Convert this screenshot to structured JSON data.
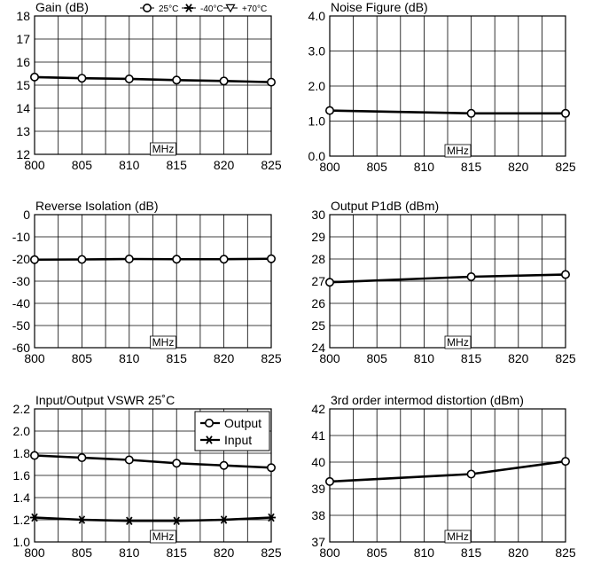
{
  "chart_data": [
    {
      "type": "line",
      "title": "Gain (dB)",
      "unit_label": "MHz",
      "x_ticks": [
        "800",
        "805",
        "810",
        "815",
        "820",
        "825"
      ],
      "y_ticks": [
        "12",
        "13",
        "14",
        "15",
        "16",
        "17",
        "18"
      ],
      "ylim": [
        12,
        18
      ],
      "xlim": [
        800,
        825
      ],
      "legend": {
        "style": "inline-top",
        "entries": [
          {
            "label": "25°C",
            "marker": "circle"
          },
          {
            "label": "-40°C",
            "marker": "asterisk"
          },
          {
            "label": "+70°C",
            "marker": "triangle-down"
          }
        ]
      },
      "series": [
        {
          "marker": "circle",
          "x": [
            800,
            805,
            810,
            815,
            820,
            825
          ],
          "values": [
            15.35,
            15.3,
            15.27,
            15.22,
            15.18,
            15.13
          ]
        }
      ]
    },
    {
      "type": "line",
      "title": "Noise Figure (dB)",
      "unit_label": "MHz",
      "x_ticks": [
        "800",
        "805",
        "810",
        "815",
        "820",
        "825"
      ],
      "y_ticks": [
        "0.0",
        "1.0",
        "2.0",
        "3.0",
        "4.0"
      ],
      "ylim": [
        0,
        4
      ],
      "xlim": [
        800,
        825
      ],
      "series": [
        {
          "marker": "circle",
          "x": [
            800,
            815,
            825
          ],
          "values": [
            1.3,
            1.22,
            1.22
          ]
        }
      ]
    },
    {
      "type": "line",
      "title": "Reverse Isolation (dB)",
      "unit_label": "MHz",
      "x_ticks": [
        "800",
        "805",
        "810",
        "815",
        "820",
        "825"
      ],
      "y_ticks": [
        "-60",
        "-50",
        "-40",
        "-30",
        "-20",
        "-10",
        "0"
      ],
      "ylim": [
        -60,
        0
      ],
      "xlim": [
        800,
        825
      ],
      "series": [
        {
          "marker": "circle",
          "x": [
            800,
            805,
            810,
            815,
            820,
            825
          ],
          "values": [
            -20.3,
            -20.2,
            -20.0,
            -20.1,
            -20.1,
            -19.9
          ]
        }
      ]
    },
    {
      "type": "line",
      "title": "Output P1dB (dBm)",
      "unit_label": "MHz",
      "x_ticks": [
        "800",
        "805",
        "810",
        "815",
        "820",
        "825"
      ],
      "y_ticks": [
        "24",
        "25",
        "26",
        "27",
        "28",
        "29",
        "30"
      ],
      "ylim": [
        24,
        30
      ],
      "xlim": [
        800,
        825
      ],
      "series": [
        {
          "marker": "circle",
          "x": [
            800,
            815,
            825
          ],
          "values": [
            26.95,
            27.2,
            27.3
          ]
        }
      ]
    },
    {
      "type": "line",
      "title": "Input/Output VSWR 25˚C",
      "unit_label": "MHz",
      "x_ticks": [
        "800",
        "805",
        "810",
        "815",
        "820",
        "825"
      ],
      "y_ticks": [
        "1.0",
        "1.2",
        "1.4",
        "1.6",
        "1.8",
        "2.0",
        "2.2"
      ],
      "ylim": [
        1.0,
        2.2
      ],
      "xlim": [
        800,
        825
      ],
      "legend": {
        "style": "box-top-right",
        "entries": [
          {
            "label": "Output",
            "marker": "circle"
          },
          {
            "label": "Input",
            "marker": "asterisk"
          }
        ]
      },
      "series": [
        {
          "name": "Output",
          "marker": "circle",
          "x": [
            800,
            805,
            810,
            815,
            820,
            825
          ],
          "values": [
            1.78,
            1.76,
            1.74,
            1.71,
            1.69,
            1.67
          ]
        },
        {
          "name": "Input",
          "marker": "asterisk",
          "x": [
            800,
            805,
            810,
            815,
            820,
            825
          ],
          "values": [
            1.22,
            1.2,
            1.19,
            1.19,
            1.2,
            1.22
          ]
        }
      ]
    },
    {
      "type": "line",
      "title": "3rd order intermod distortion (dBm)",
      "unit_label": "MHz",
      "x_ticks": [
        "800",
        "805",
        "810",
        "815",
        "820",
        "825"
      ],
      "y_ticks": [
        "37",
        "38",
        "39",
        "40",
        "41",
        "42"
      ],
      "ylim": [
        37,
        42
      ],
      "xlim": [
        800,
        825
      ],
      "series": [
        {
          "marker": "circle",
          "x": [
            800,
            815,
            825
          ],
          "values": [
            39.27,
            39.55,
            40.03
          ]
        }
      ]
    }
  ],
  "colors": {
    "line": "#000000",
    "grid": "#000000",
    "background": "#ffffff"
  }
}
